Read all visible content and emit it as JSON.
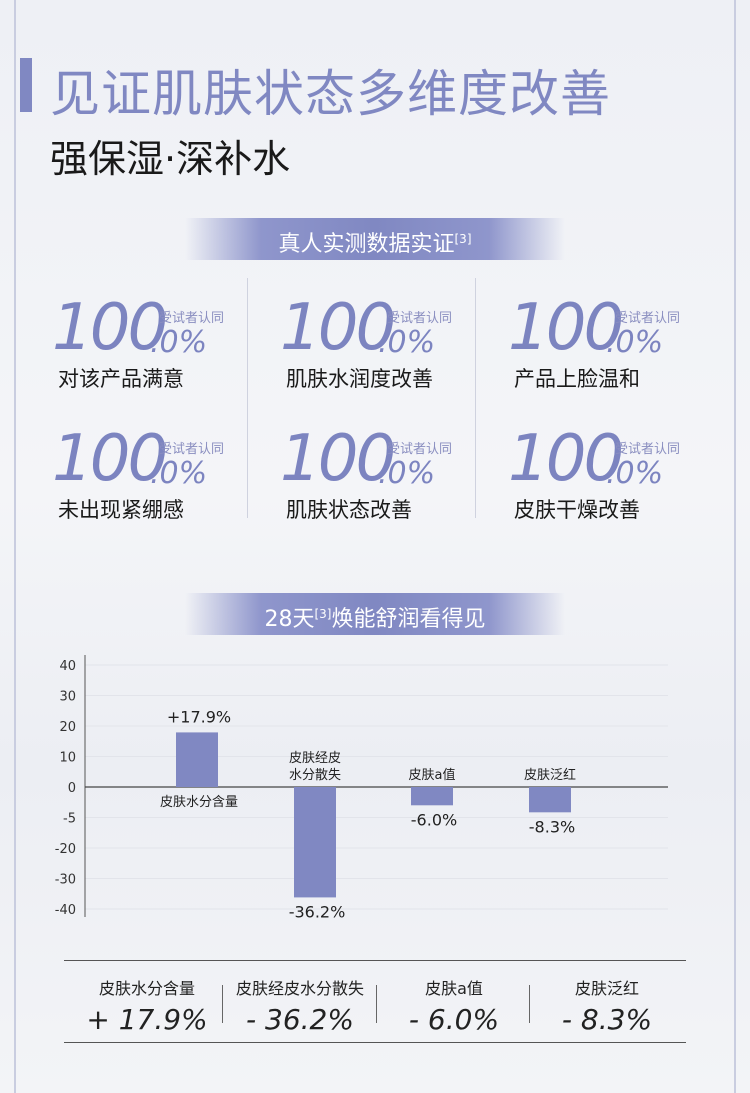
{
  "header": {
    "title": "见证肌肤状态多维度改善",
    "subtitle": "强保湿·深补水"
  },
  "banner1": {
    "text": "真人实测数据实证",
    "sup": "[3]"
  },
  "stats": [
    {
      "number": "100",
      "decimal": ".0%",
      "note": "受试者认同",
      "label": "对该产品满意"
    },
    {
      "number": "100",
      "decimal": ".0%",
      "note": "受试者认同",
      "label": "肌肤水润度改善"
    },
    {
      "number": "100",
      "decimal": ".0%",
      "note": "受试者认同",
      "label": "产品上脸温和"
    },
    {
      "number": "100",
      "decimal": ".0%",
      "note": "受试者认同",
      "label": "未出现紧绷感"
    },
    {
      "number": "100",
      "decimal": ".0%",
      "note": "受试者认同",
      "label": "肌肤状态改善"
    },
    {
      "number": "100",
      "decimal": ".0%",
      "note": "受试者认同",
      "label": "皮肤干燥改善"
    }
  ],
  "banner2": {
    "prefix": "28天",
    "sup": "[3]",
    "suffix": "焕能舒润看得见"
  },
  "chart_data": {
    "type": "bar",
    "title": "",
    "xlabel": "",
    "ylabel": "",
    "y_ticks": [
      "40",
      "30",
      "20",
      "10",
      "0",
      "-5",
      "-20",
      "-30",
      "-40"
    ],
    "ylim": [
      -40,
      40
    ],
    "grid": true,
    "categories": [
      "皮肤水分含量",
      "皮肤经皮水分散失",
      "皮肤a值",
      "皮肤泛红"
    ],
    "category_label_lines": [
      [
        "皮肤水分含量"
      ],
      [
        "皮肤经皮",
        "水分散失"
      ],
      [
        "皮肤a值"
      ],
      [
        "皮肤泛红"
      ]
    ],
    "values": [
      17.9,
      -36.2,
      -6.0,
      -8.3
    ],
    "value_labels": [
      "+17.9%",
      "-36.2%",
      "-6.0%",
      "-8.3%"
    ],
    "bar_color": "#8088c2"
  },
  "summary": [
    {
      "label": "皮肤水分含量",
      "value": "+ 17.9%"
    },
    {
      "label": "皮肤经皮水分散失",
      "value": "- 36.2%"
    },
    {
      "label": "皮肤a值",
      "value": "- 6.0%"
    },
    {
      "label": "皮肤泛红",
      "value": "- 8.3%"
    }
  ]
}
